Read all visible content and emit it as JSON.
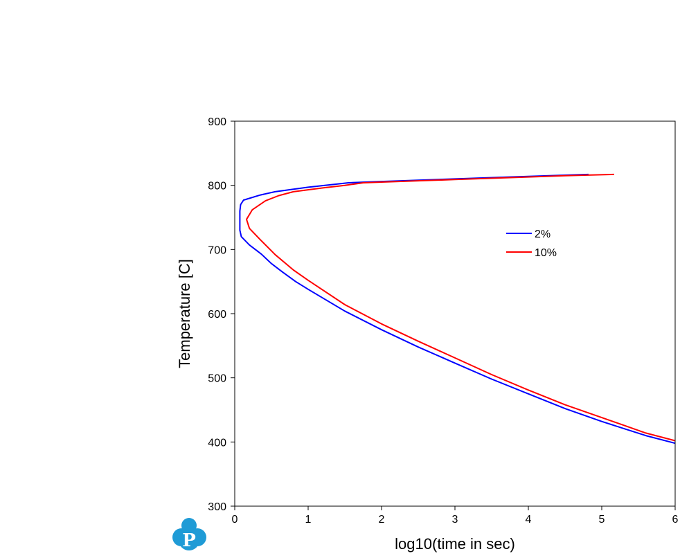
{
  "chart_data": {
    "type": "line",
    "title": "",
    "xlabel": "log10(time in sec)",
    "ylabel": "Temperature [C]",
    "xlim": [
      0,
      6
    ],
    "ylim": [
      300,
      900
    ],
    "xticks": [
      0,
      1,
      2,
      3,
      4,
      5,
      6
    ],
    "yticks": [
      300,
      400,
      500,
      600,
      700,
      800,
      900
    ],
    "grid": false,
    "legend_position": "right-middle",
    "series": [
      {
        "name": "2%",
        "color": "#0000ff",
        "points": [
          [
            4.82,
            817
          ],
          [
            4.0,
            814
          ],
          [
            3.0,
            810
          ],
          [
            2.0,
            806
          ],
          [
            1.55,
            804
          ],
          [
            1.0,
            797
          ],
          [
            0.8,
            794
          ],
          [
            0.55,
            790
          ],
          [
            0.35,
            785
          ],
          [
            0.12,
            777
          ],
          [
            0.08,
            770
          ],
          [
            0.07,
            760
          ],
          [
            0.07,
            745
          ],
          [
            0.07,
            730
          ],
          [
            0.09,
            720
          ],
          [
            0.2,
            707
          ],
          [
            0.36,
            693
          ],
          [
            0.5,
            678
          ],
          [
            0.65,
            665
          ],
          [
            0.83,
            650
          ],
          [
            1.0,
            638
          ],
          [
            1.5,
            604
          ],
          [
            2.0,
            575
          ],
          [
            2.5,
            548
          ],
          [
            3.0,
            523
          ],
          [
            3.5,
            498
          ],
          [
            4.0,
            475
          ],
          [
            4.5,
            452
          ],
          [
            5.0,
            432
          ],
          [
            5.3,
            421
          ],
          [
            5.6,
            410
          ],
          [
            6.0,
            398
          ]
        ]
      },
      {
        "name": "10%",
        "color": "#ff0000",
        "points": [
          [
            5.17,
            817
          ],
          [
            4.5,
            815
          ],
          [
            4.0,
            813
          ],
          [
            3.0,
            809
          ],
          [
            2.0,
            805
          ],
          [
            1.75,
            804
          ],
          [
            1.5,
            800
          ],
          [
            1.2,
            796
          ],
          [
            0.8,
            790
          ],
          [
            0.6,
            784
          ],
          [
            0.42,
            776
          ],
          [
            0.24,
            762
          ],
          [
            0.16,
            747
          ],
          [
            0.2,
            733
          ],
          [
            0.35,
            715
          ],
          [
            0.55,
            692
          ],
          [
            0.8,
            668
          ],
          [
            1.0,
            652
          ],
          [
            1.5,
            614
          ],
          [
            2.0,
            584
          ],
          [
            2.5,
            557
          ],
          [
            3.0,
            531
          ],
          [
            3.5,
            505
          ],
          [
            4.0,
            481
          ],
          [
            4.5,
            458
          ],
          [
            5.0,
            438
          ],
          [
            5.3,
            426
          ],
          [
            5.6,
            414
          ],
          [
            6.0,
            402
          ]
        ]
      }
    ]
  },
  "logo": {
    "letter": "P",
    "color": "#1f9bd6"
  }
}
